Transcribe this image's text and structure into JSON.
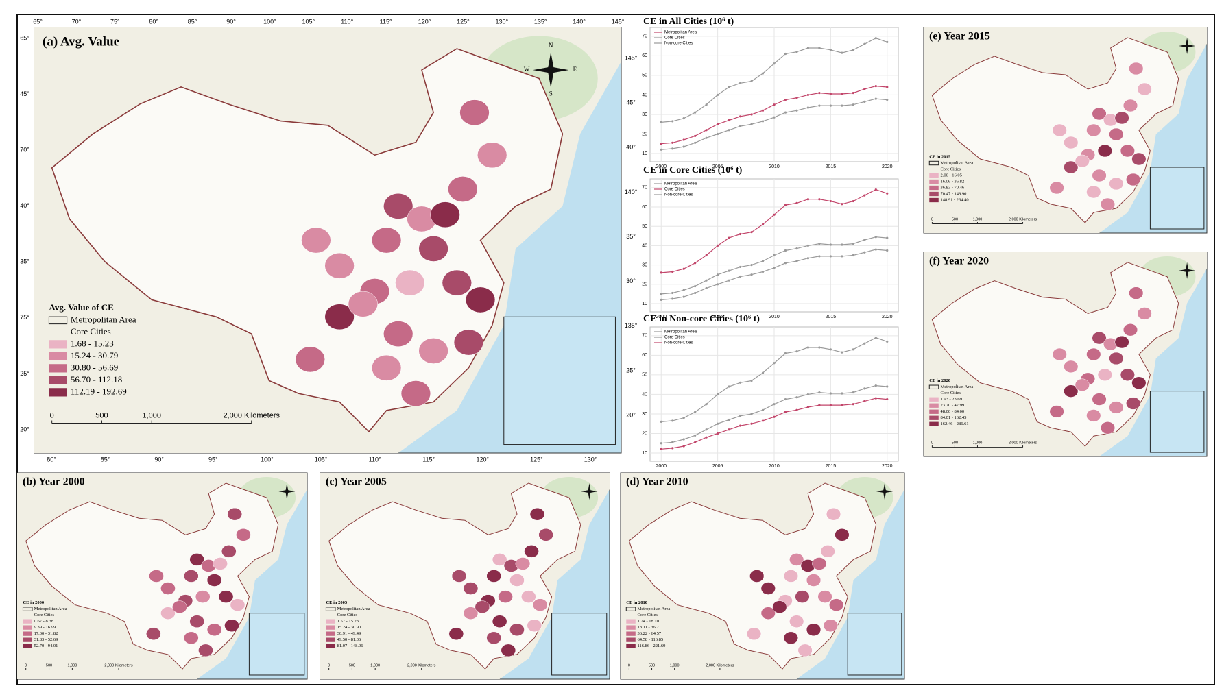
{
  "maps": [
    {
      "title": "(a) Avg. Value",
      "legend_title": "Avg. Value of CE",
      "legend_outline": "Metropolitan Area",
      "legend_core": "Core Cities",
      "legend_items": [
        "1.68 - 15.23",
        "15.24 - 30.79",
        "30.80 - 56.69",
        "56.70 - 112.18",
        "112.19 - 192.69"
      ]
    },
    {
      "title": "(b) Year 2000",
      "legend_title": "CE in 2000",
      "legend_outline": "Metropolitan Area",
      "legend_core": "Core Cities",
      "legend_items": [
        "0.67 - 8.38",
        "9.39 - 16.99",
        "17.00 - 31.82",
        "31.83 - 52.69",
        "52.70 - 94.01"
      ]
    },
    {
      "title": "(c) Year 2005",
      "legend_title": "CE in 2005",
      "legend_outline": "Metropolitan Area",
      "legend_core": "Core Cities",
      "legend_items": [
        "1.57 - 15.23",
        "15.24 - 30.90",
        "30.91 - 49.49",
        "49.50 - 81.06",
        "81.07 - 148.96"
      ]
    },
    {
      "title": "(d) Year 2010",
      "legend_title": "CE in 2010",
      "legend_outline": "Metropolitan Area",
      "legend_core": "Core Cities",
      "legend_items": [
        "1.74 - 18.10",
        "18.11 - 36.21",
        "36.22 - 64.57",
        "64.58 - 116.85",
        "116.86 - 221.69"
      ]
    },
    {
      "title": "(e) Year 2015",
      "legend_title": "CE in 2015",
      "legend_outline": "Metropolitan Area",
      "legend_core": "Core Cities",
      "legend_items": [
        "2.00 - 16.05",
        "16.06 - 36.82",
        "36.83 - 70.46",
        "70.47 - 148.90",
        "148.91 - 264.40"
      ]
    },
    {
      "title": "(f) Year 2020",
      "legend_title": "CE in 2020",
      "legend_outline": "Metropolitan Area",
      "legend_core": "Core Cities",
      "legend_items": [
        "1.93 - 23.69",
        "23.70 - 47.99",
        "48.00 - 84.00",
        "84.01 - 162.45",
        "162.46 - 286.61"
      ]
    }
  ],
  "scale_bar": [
    "0",
    "500",
    "1,000",
    "2,000 Kilometers"
  ],
  "compass": [
    "N",
    "E",
    "S",
    "W"
  ],
  "graticule": {
    "top": [
      "65°",
      "70°",
      "75°",
      "80°",
      "85°",
      "90°",
      "100°",
      "105°",
      "110°",
      "115°",
      "120°",
      "125°",
      "130°",
      "135°",
      "140°",
      "145°"
    ],
    "bottom": [
      "80°",
      "85°",
      "90°",
      "95°",
      "100°",
      "105°",
      "110°",
      "115°",
      "120°",
      "125°",
      "130°"
    ],
    "left": [
      "65°",
      "45°",
      "70°",
      "40°",
      "35°",
      "75°",
      "25°",
      "20°"
    ],
    "right": [
      "145°",
      "45°",
      "40°",
      "140°",
      "35°",
      "30°",
      "135°",
      "25°",
      "20°"
    ]
  },
  "chart_data": [
    {
      "type": "line",
      "title": "CE in All Cities (10⁶ t)",
      "x": [
        2000,
        2001,
        2002,
        2003,
        2004,
        2005,
        2006,
        2007,
        2008,
        2009,
        2010,
        2011,
        2012,
        2013,
        2014,
        2015,
        2016,
        2017,
        2018,
        2019,
        2020
      ],
      "xlim": [
        1999.5,
        2020.5
      ],
      "xticks": [
        2000,
        2005,
        2010,
        2015,
        2020
      ],
      "ylim": [
        10,
        71
      ],
      "yticks": [
        10,
        20,
        30,
        40,
        50,
        60,
        70
      ],
      "grid": true,
      "series": [
        {
          "name": "Metropolitan Area",
          "color": "#c2456a",
          "values": [
            15,
            15.5,
            17,
            19,
            22,
            25,
            27,
            29,
            30,
            32,
            35,
            37.5,
            38.5,
            40,
            41,
            40.5,
            40.5,
            41,
            43,
            44.5,
            44
          ]
        },
        {
          "name": "Core Cities",
          "color": "#9a9a9a",
          "values": [
            26,
            26.5,
            28,
            31,
            35,
            40,
            44,
            46,
            47,
            51,
            56,
            61,
            62,
            64,
            64,
            63,
            61.5,
            63,
            66,
            69,
            67
          ]
        },
        {
          "name": "Non-core Cities",
          "color": "#9a9a9a",
          "values": [
            12,
            12.5,
            13.5,
            15.5,
            18,
            20,
            22,
            24,
            25,
            26.5,
            28.5,
            31,
            32,
            33.5,
            34.5,
            34.5,
            34.5,
            35,
            36.5,
            38,
            37.5
          ]
        }
      ]
    },
    {
      "type": "line",
      "title": "CE in Core Cities (10⁶ t)",
      "x": [
        2000,
        2001,
        2002,
        2003,
        2004,
        2005,
        2006,
        2007,
        2008,
        2009,
        2010,
        2011,
        2012,
        2013,
        2014,
        2015,
        2016,
        2017,
        2018,
        2019,
        2020
      ],
      "xlim": [
        1999.5,
        2020.5
      ],
      "xticks": [
        2000,
        2005,
        2010,
        2015,
        2020
      ],
      "ylim": [
        10,
        71
      ],
      "yticks": [
        10,
        20,
        30,
        40,
        50,
        60,
        70
      ],
      "grid": true,
      "series": [
        {
          "name": "Metropolitan Area",
          "color": "#9a9a9a",
          "values": [
            15,
            15.5,
            17,
            19,
            22,
            25,
            27,
            29,
            30,
            32,
            35,
            37.5,
            38.5,
            40,
            41,
            40.5,
            40.5,
            41,
            43,
            44.5,
            44
          ]
        },
        {
          "name": "Core Cities",
          "color": "#c2456a",
          "values": [
            26,
            26.5,
            28,
            31,
            35,
            40,
            44,
            46,
            47,
            51,
            56,
            61,
            62,
            64,
            64,
            63,
            61.5,
            63,
            66,
            69,
            67
          ]
        },
        {
          "name": "Non-core Cities",
          "color": "#9a9a9a",
          "values": [
            12,
            12.5,
            13.5,
            15.5,
            18,
            20,
            22,
            24,
            25,
            26.5,
            28.5,
            31,
            32,
            33.5,
            34.5,
            34.5,
            34.5,
            35,
            36.5,
            38,
            37.5
          ]
        }
      ]
    },
    {
      "type": "line",
      "title": "CE in Non-core Cities (10⁶ t)",
      "x": [
        2000,
        2001,
        2002,
        2003,
        2004,
        2005,
        2006,
        2007,
        2008,
        2009,
        2010,
        2011,
        2012,
        2013,
        2014,
        2015,
        2016,
        2017,
        2018,
        2019,
        2020
      ],
      "xlim": [
        1999.5,
        2020.5
      ],
      "xticks": [
        2000,
        2005,
        2010,
        2015,
        2020
      ],
      "ylim": [
        10,
        71
      ],
      "yticks": [
        10,
        20,
        30,
        40,
        50,
        60,
        70
      ],
      "grid": true,
      "series": [
        {
          "name": "Metropolitan Area",
          "color": "#9a9a9a",
          "values": [
            15,
            15.5,
            17,
            19,
            22,
            25,
            27,
            29,
            30,
            32,
            35,
            37.5,
            38.5,
            40,
            41,
            40.5,
            40.5,
            41,
            43,
            44.5,
            44
          ]
        },
        {
          "name": "Core Cities",
          "color": "#9a9a9a",
          "values": [
            26,
            26.5,
            28,
            31,
            35,
            40,
            44,
            46,
            47,
            51,
            56,
            61,
            62,
            64,
            64,
            63,
            61.5,
            63,
            66,
            69,
            67
          ]
        },
        {
          "name": "Non-core Cities",
          "color": "#c2456a",
          "values": [
            12,
            12.5,
            13.5,
            15.5,
            18,
            20,
            22,
            24,
            25,
            26.5,
            28.5,
            31,
            32,
            33.5,
            34.5,
            34.5,
            34.5,
            35,
            36.5,
            38,
            37.5
          ]
        }
      ]
    }
  ]
}
